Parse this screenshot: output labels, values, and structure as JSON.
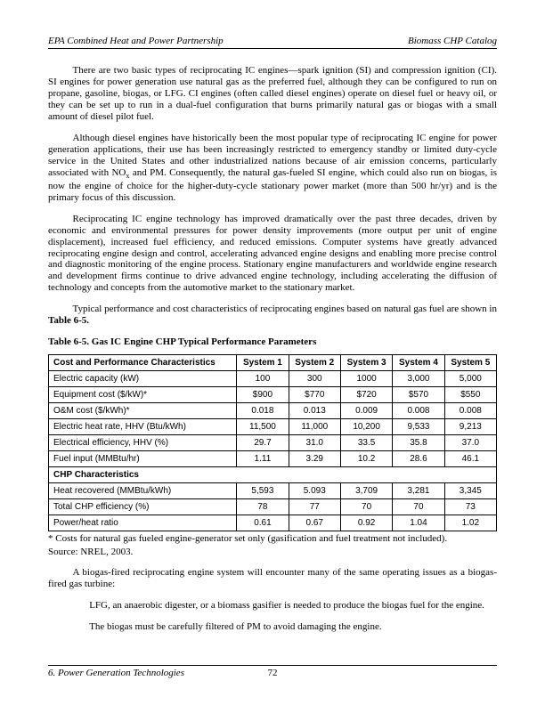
{
  "header": {
    "left": "EPA Combined Heat and Power Partnership",
    "right": "Biomass CHP Catalog"
  },
  "paras": {
    "p1": "There are two basic types of reciprocating IC engines—spark ignition (SI) and compression ignition (CI). SI engines for power generation use natural gas as the preferred fuel, although they can be configured to run on propane, gasoline, biogas, or LFG. CI engines (often called diesel engines) operate on diesel fuel or heavy oil, or they can be set up to run in a dual-fuel configuration that burns primarily natural gas or biogas with a small amount of diesel pilot fuel.",
    "p2a": "Although diesel engines have historically been the most popular type of reciprocating IC engine for power generation applications, their use has been increasingly restricted to emergency standby or limited duty-cycle service in the United States and other industrialized nations because of air emission concerns, particularly associated with NO",
    "p2b": " and PM. Consequently, the natural gas-fueled SI engine, which could also run on biogas, is now the engine of choice for the higher-duty-cycle stationary power market (more than 500 hr/yr) and is the primary focus of this discussion.",
    "p3": "Reciprocating IC engine technology has improved dramatically over the past three decades, driven by economic and environmental pressures for power density improvements (more output per unit of engine displacement), increased fuel efficiency, and reduced emissions. Computer systems have greatly advanced reciprocating engine design and control, accelerating advanced engine designs and enabling more precise control and diagnostic monitoring of the engine process. Stationary engine manufacturers and worldwide engine research and development firms continue to drive advanced engine technology, including accelerating the diffusion of technology and concepts from the automotive market to the stationary market.",
    "p4a": "Typical performance and cost characteristics of reciprocating engines based on natural gas fuel are shown in ",
    "p4b": "Table 6-5."
  },
  "table": {
    "title": "Table 6-5. Gas IC Engine CHP Typical Performance Parameters",
    "headers": [
      "Cost and Performance Characteristics",
      "System 1",
      "System 2",
      "System 3",
      "System 4",
      "System 5"
    ],
    "rows": [
      {
        "label": "Electric capacity (kW)",
        "vals": [
          "100",
          "300",
          "1000",
          "3,000",
          "5,000"
        ]
      },
      {
        "label": "Equipment cost ($/kW)*",
        "vals": [
          "$900",
          "$770",
          "$720",
          "$570",
          "$550"
        ]
      },
      {
        "label": "O&M cost ($/kWh)*",
        "vals": [
          "0.018",
          "0.013",
          "0.009",
          "0.008",
          "0.008"
        ]
      },
      {
        "label": "Electric heat rate, HHV (Btu/kWh)",
        "vals": [
          "11,500",
          "11,000",
          "10,200",
          "9,533",
          "9,213"
        ]
      },
      {
        "label": "Electrical efficiency, HHV (%)",
        "vals": [
          "29.7",
          "31.0",
          "33.5",
          "35.8",
          "37.0"
        ]
      },
      {
        "label": "Fuel input (MMBtu/hr)",
        "vals": [
          "1.11",
          "3.29",
          "10.2",
          "28.6",
          "46.1"
        ]
      }
    ],
    "section": "CHP Characteristics",
    "rows2": [
      {
        "label": "Heat recovered (MMBtu/kWh)",
        "vals": [
          "5,593",
          "5.093",
          "3,709",
          "3,281",
          "3,345"
        ]
      },
      {
        "label": "Total CHP efficiency (%)",
        "vals": [
          "78",
          "77",
          "70",
          "70",
          "73"
        ]
      },
      {
        "label": "Power/heat ratio",
        "vals": [
          "0.61",
          "0.67",
          "0.92",
          "1.04",
          "1.02"
        ]
      }
    ],
    "footnote1": "* Costs for natural gas fueled engine-generator set only (gasification and fuel treatment not included).",
    "footnote2": "Source: NREL, 2003."
  },
  "post": {
    "p5": "A biogas-fired reciprocating engine system will encounter many of the same operating issues as a biogas-fired gas turbine:",
    "b1": "LFG, an anaerobic digester, or a biomass gasifier is needed to produce the biogas fuel for the engine.",
    "b2": "The biogas must be carefully filtered of PM to avoid damaging the engine."
  },
  "footer": {
    "left": "6. Power Generation Technologies",
    "page": "72"
  }
}
